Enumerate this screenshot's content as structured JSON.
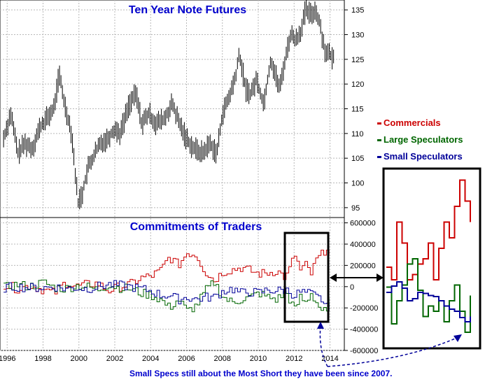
{
  "top_chart_title": "Ten Year Note Futures",
  "bottom_chart_title": "Commitments of Traders",
  "annotation": "Small Specs still about the Most Short they have been since 2007.",
  "legend": [
    {
      "label": "Commercials",
      "color": "#cc0000"
    },
    {
      "label": "Large Speculators",
      "color": "#006600"
    },
    {
      "label": "Small Speculators",
      "color": "#000099"
    }
  ],
  "colors": {
    "title": "#0000cc",
    "grid": "#b8b8b8",
    "price": "#000000"
  },
  "chart_data": [
    {
      "type": "line",
      "title": "Ten Year Note Futures",
      "x_range": [
        1995.6,
        2014.8
      ],
      "ylim": [
        93,
        137
      ],
      "y_ticks": [
        95,
        100,
        105,
        110,
        115,
        120,
        125,
        130,
        135
      ],
      "grid": true,
      "x": [
        1995.8,
        1996.2,
        1996.6,
        1997.0,
        1997.4,
        1997.8,
        1998.2,
        1998.6,
        1998.9,
        1999.2,
        1999.6,
        1999.95,
        2000.2,
        2000.5,
        2000.9,
        2001.2,
        2001.6,
        2002.0,
        2002.3,
        2002.8,
        2003.2,
        2003.5,
        2003.9,
        2004.3,
        2004.8,
        2005.2,
        2005.6,
        2006.0,
        2006.4,
        2006.9,
        2007.3,
        2007.7,
        2008.0,
        2008.35,
        2008.7,
        2008.95,
        2009.3,
        2009.6,
        2009.9,
        2010.3,
        2010.7,
        2010.95,
        2011.2,
        2011.5,
        2011.8,
        2012.1,
        2012.4,
        2012.65,
        2012.9,
        2013.2,
        2013.45,
        2013.7,
        2013.95,
        2014.2
      ],
      "y": [
        109,
        114,
        106,
        108,
        107,
        111,
        113,
        115,
        122,
        116,
        110,
        96,
        98,
        103,
        106,
        108,
        109,
        111,
        110,
        116,
        118,
        112,
        114,
        112,
        113,
        116,
        112,
        109,
        107,
        106,
        108,
        106,
        114,
        117,
        121,
        126,
        119,
        118,
        121,
        116,
        125,
        122,
        119,
        125,
        130,
        129,
        131,
        135,
        134,
        135,
        132,
        127,
        126,
        125
      ]
    },
    {
      "type": "line",
      "title": "Commitments of Traders",
      "x_range": [
        1995.6,
        2014.8
      ],
      "x_ticks": [
        "1996",
        "1998",
        "2000",
        "2002",
        "2004",
        "2006",
        "2008",
        "2010",
        "2012",
        "2014"
      ],
      "ylim": [
        -600000,
        650000
      ],
      "y_ticks": [
        "600000",
        "400000",
        "200000",
        "0",
        "-200000",
        "-400000",
        "-600000"
      ],
      "grid": true,
      "x": [
        1995.8,
        1996.5,
        1997.2,
        1998.0,
        1998.6,
        1999.2,
        1999.8,
        2000.4,
        2001.0,
        2001.6,
        2002.2,
        2002.8,
        2003.4,
        2004.0,
        2004.5,
        2005.0,
        2005.5,
        2006.0,
        2006.5,
        2007.0,
        2007.5,
        2008.0,
        2008.5,
        2009.0,
        2009.5,
        2010.0,
        2010.5,
        2011.0,
        2011.5,
        2012.0,
        2012.3,
        2012.6,
        2012.9,
        2013.2,
        2013.5,
        2013.8,
        2014.1
      ],
      "series": [
        {
          "name": "Commercials",
          "values": [
            20000,
            -20000,
            10000,
            -30000,
            -60000,
            40000,
            0,
            20000,
            30000,
            -40000,
            0,
            20000,
            80000,
            100000,
            150000,
            280000,
            200000,
            320000,
            300000,
            140000,
            60000,
            140000,
            160000,
            180000,
            150000,
            120000,
            130000,
            150000,
            80000,
            300000,
            150000,
            200000,
            120000,
            250000,
            300000,
            380000,
            200000
          ]
        },
        {
          "name": "Large Speculators",
          "values": [
            -10000,
            20000,
            0,
            40000,
            -10000,
            -20000,
            10000,
            0,
            -30000,
            20000,
            -10000,
            -20000,
            -60000,
            -80000,
            -120000,
            -200000,
            -120000,
            -230000,
            -180000,
            -40000,
            40000,
            -100000,
            -150000,
            -120000,
            -100000,
            -60000,
            -100000,
            -120000,
            -50000,
            -220000,
            -100000,
            -150000,
            -60000,
            -150000,
            -220000,
            -250000,
            -40000
          ]
        },
        {
          "name": "Small Speculators",
          "values": [
            -10000,
            0,
            -10000,
            -10000,
            0,
            -20000,
            -10000,
            -20000,
            0,
            20000,
            10000,
            0,
            -20000,
            -40000,
            -80000,
            -80000,
            -120000,
            -100000,
            -120000,
            -100000,
            -100000,
            -40000,
            -20000,
            -60000,
            -50000,
            -60000,
            -30000,
            -40000,
            -30000,
            -80000,
            -50000,
            -60000,
            -70000,
            -100000,
            -120000,
            -200000,
            -160000
          ]
        }
      ]
    },
    {
      "type": "line",
      "title": "",
      "series": [
        {
          "name": "Commercials",
          "values": [
            220000,
            100000,
            650000,
            450000,
            100000,
            150000,
            250000,
            300000,
            450000,
            100000,
            400000,
            650000,
            500000,
            800000,
            1050000,
            850000,
            650000
          ]
        },
        {
          "name": "Large Speculators",
          "values": [
            30000,
            -320000,
            -100000,
            50000,
            250000,
            300000,
            0,
            -250000,
            -150000,
            -200000,
            -100000,
            -300000,
            -100000,
            50000,
            -200000,
            -400000,
            -50000
          ]
        },
        {
          "name": "Small Speculators",
          "values": [
            -20000,
            40000,
            80000,
            20000,
            -100000,
            -80000,
            -20000,
            -30000,
            -50000,
            -60000,
            -100000,
            -150000,
            -180000,
            -200000,
            -260000,
            -300000,
            -250000
          ]
        }
      ]
    }
  ]
}
